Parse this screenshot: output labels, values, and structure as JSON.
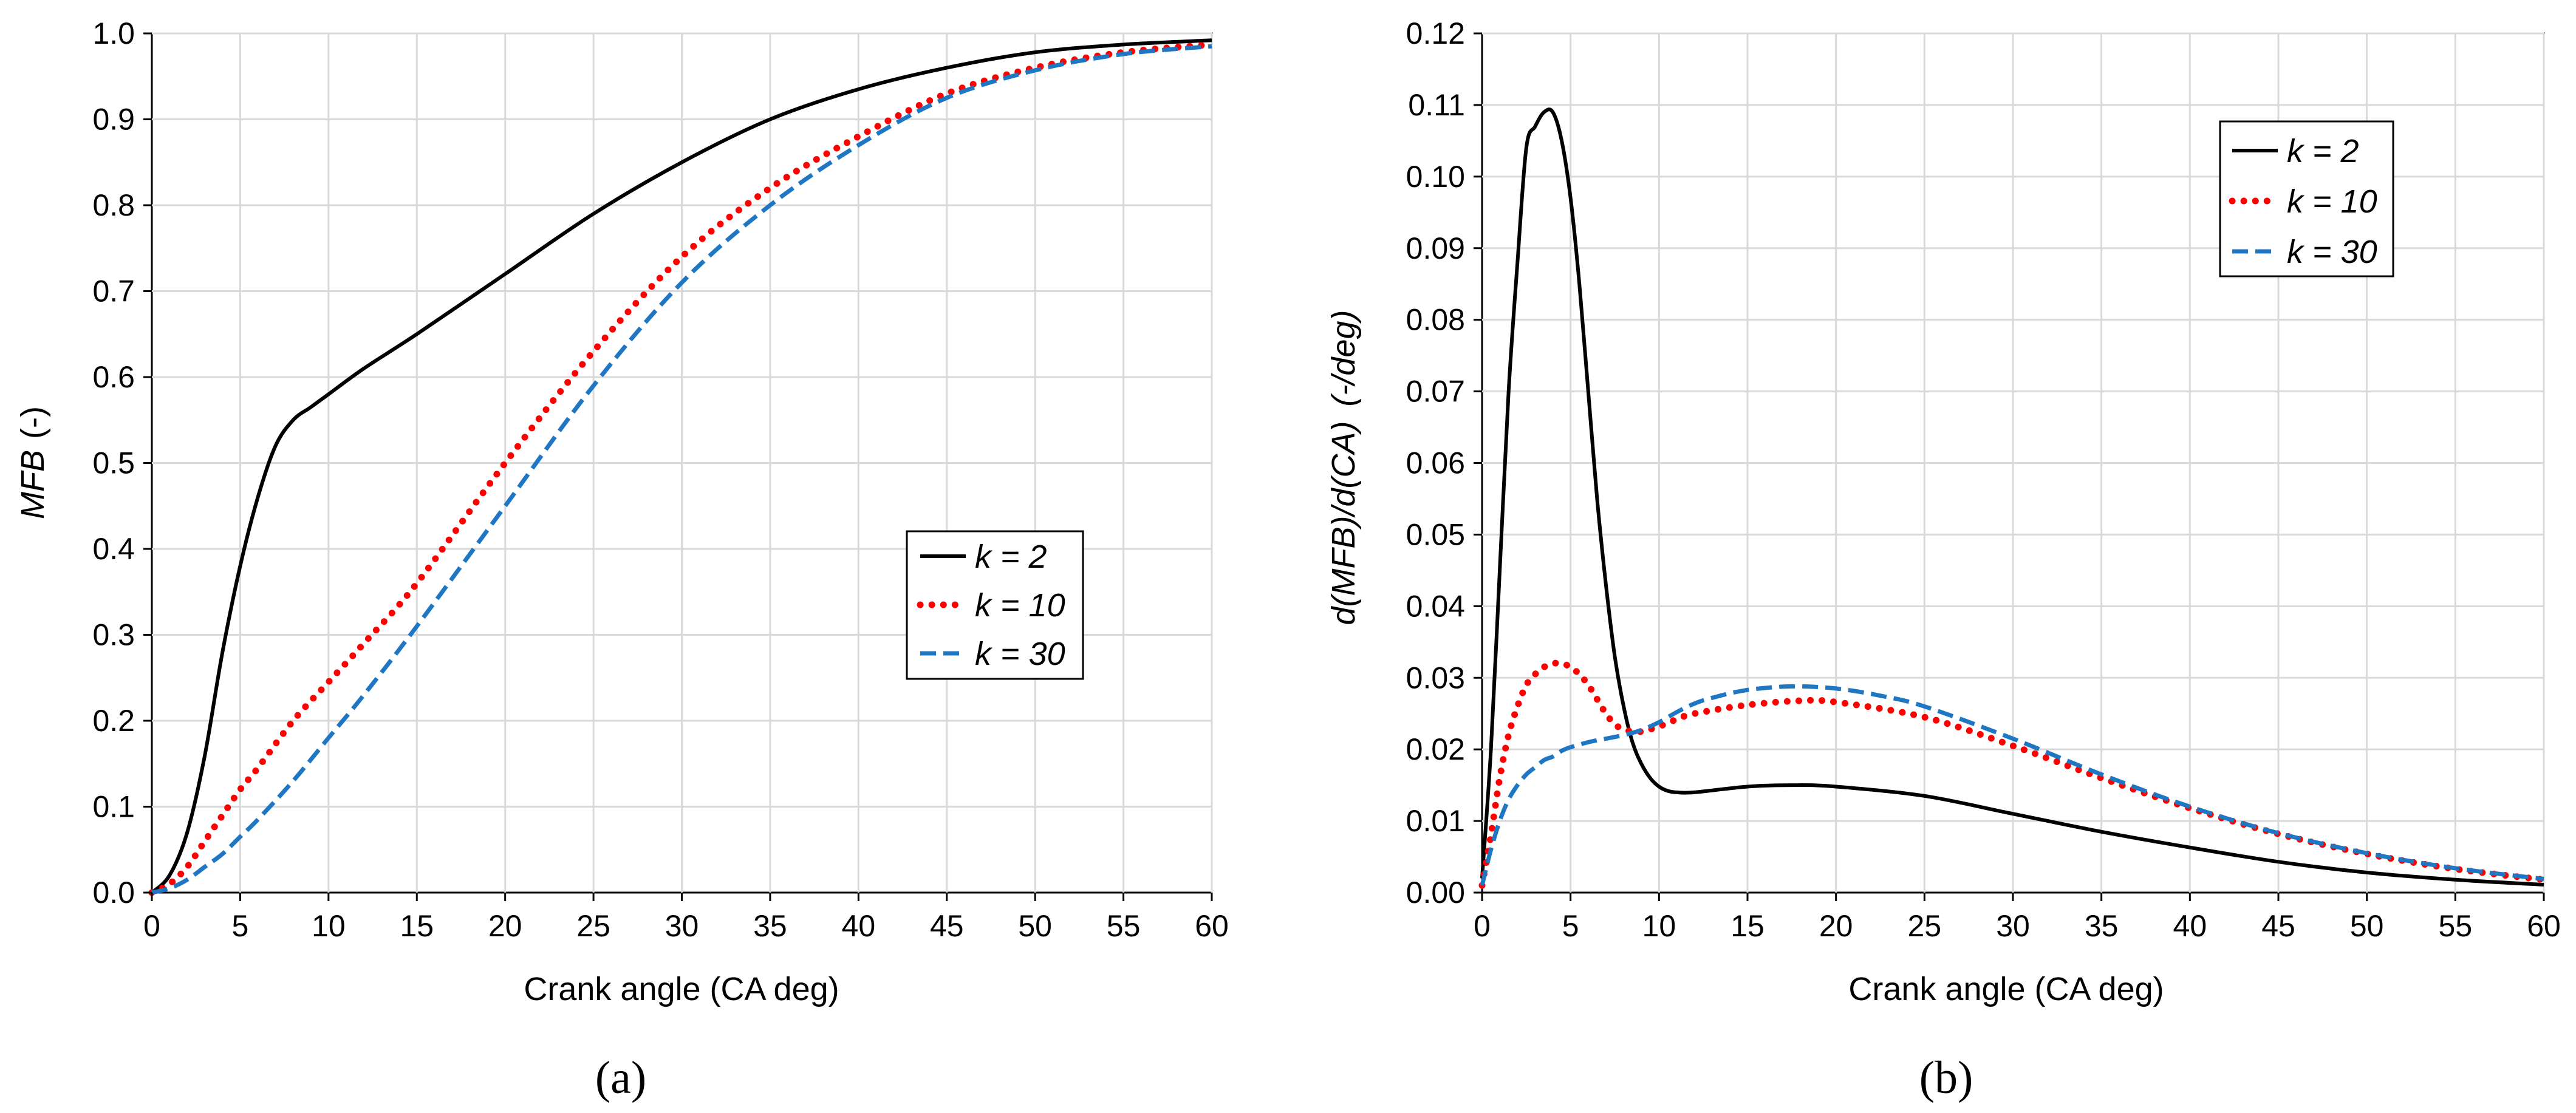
{
  "colors": {
    "k2": "#000000",
    "k10": "#ff0000",
    "k30": "#1f77c4",
    "grid": "#d9d9d9"
  },
  "chart_data": [
    {
      "type": "line",
      "panel_label": "(a)",
      "xlabel": "Crank angle (CA deg)",
      "ylabel_italic": "MFB",
      "ylabel_rest": "(-)",
      "xlim": [
        0,
        60
      ],
      "ylim": [
        0,
        1.0
      ],
      "xticks": [
        "0",
        "5",
        "10",
        "15",
        "20",
        "25",
        "30",
        "35",
        "40",
        "45",
        "50",
        "55",
        "60"
      ],
      "yticks": [
        "0.0",
        "0.1",
        "0.2",
        "0.3",
        "0.4",
        "0.5",
        "0.6",
        "0.7",
        "0.8",
        "0.9",
        "1.0"
      ],
      "legend_position": "center-right",
      "series": [
        {
          "name": "k = 2",
          "style": "solid",
          "x": [
            0,
            1,
            2,
            3,
            4,
            5,
            6,
            7,
            8,
            9,
            10,
            12,
            15,
            20,
            25,
            30,
            35,
            40,
            45,
            50,
            55,
            60
          ],
          "y": [
            0,
            0.02,
            0.07,
            0.16,
            0.28,
            0.38,
            0.46,
            0.52,
            0.55,
            0.565,
            0.58,
            0.61,
            0.65,
            0.72,
            0.79,
            0.85,
            0.9,
            0.935,
            0.96,
            0.978,
            0.987,
            0.992
          ]
        },
        {
          "name": "k = 10",
          "style": "dotted",
          "x": [
            0,
            1,
            2,
            3,
            4,
            5,
            6,
            8,
            10,
            12,
            15,
            20,
            25,
            30,
            35,
            40,
            45,
            50,
            55,
            60
          ],
          "y": [
            0,
            0.01,
            0.03,
            0.06,
            0.09,
            0.12,
            0.145,
            0.2,
            0.245,
            0.29,
            0.36,
            0.5,
            0.63,
            0.74,
            0.82,
            0.88,
            0.93,
            0.96,
            0.978,
            0.987
          ]
        },
        {
          "name": "k = 30",
          "style": "dashed",
          "x": [
            0,
            1,
            2,
            3,
            4,
            5,
            6,
            8,
            10,
            12,
            15,
            20,
            25,
            30,
            35,
            40,
            45,
            50,
            55,
            60
          ],
          "y": [
            0,
            0.005,
            0.015,
            0.03,
            0.045,
            0.065,
            0.085,
            0.13,
            0.18,
            0.23,
            0.31,
            0.45,
            0.59,
            0.71,
            0.8,
            0.87,
            0.925,
            0.957,
            0.976,
            0.985
          ]
        }
      ]
    },
    {
      "type": "line",
      "panel_label": "(b)",
      "xlabel": "Crank angle (CA deg)",
      "ylabel_italic": "d(MFB)/d(CA)",
      "ylabel_rest": "(-/deg)",
      "xlim": [
        0,
        60
      ],
      "ylim": [
        0,
        0.12
      ],
      "xticks": [
        "0",
        "5",
        "10",
        "15",
        "20",
        "25",
        "30",
        "35",
        "40",
        "45",
        "50",
        "55",
        "60"
      ],
      "yticks": [
        "0.00",
        "0.01",
        "0.02",
        "0.03",
        "0.04",
        "0.05",
        "0.06",
        "0.07",
        "0.08",
        "0.09",
        "0.10",
        "0.11",
        "0.12"
      ],
      "legend_position": "top-center",
      "series": [
        {
          "name": "k = 2",
          "style": "solid",
          "x": [
            0,
            0.5,
            1,
            1.5,
            2,
            2.5,
            3,
            3.5,
            4,
            4.5,
            5,
            5.5,
            6,
            6.5,
            7,
            7.5,
            8,
            8.5,
            9,
            9.5,
            10,
            10.5,
            11,
            12,
            15,
            17.5,
            20,
            25,
            30,
            35,
            40,
            45,
            50,
            55,
            60
          ],
          "y": [
            0.002,
            0.02,
            0.045,
            0.07,
            0.088,
            0.104,
            0.107,
            0.109,
            0.109,
            0.105,
            0.097,
            0.085,
            0.07,
            0.055,
            0.043,
            0.033,
            0.026,
            0.021,
            0.018,
            0.016,
            0.0148,
            0.0142,
            0.014,
            0.014,
            0.0148,
            0.015,
            0.0148,
            0.0135,
            0.011,
            0.0085,
            0.0063,
            0.0043,
            0.0028,
            0.0018,
            0.0011
          ]
        },
        {
          "name": "k = 10",
          "style": "dotted",
          "x": [
            0,
            0.5,
            1,
            1.5,
            2,
            2.5,
            3,
            3.5,
            4,
            4.5,
            5,
            5.5,
            6,
            6.5,
            7,
            7.5,
            8,
            8.5,
            9,
            10,
            11,
            12,
            15,
            18,
            20,
            25,
            30,
            35,
            40,
            45,
            50,
            55,
            60
          ],
          "y": [
            0.001,
            0.008,
            0.016,
            0.022,
            0.026,
            0.029,
            0.0305,
            0.0315,
            0.032,
            0.032,
            0.0315,
            0.0305,
            0.029,
            0.027,
            0.025,
            0.0235,
            0.0228,
            0.0225,
            0.0225,
            0.0232,
            0.0242,
            0.025,
            0.0262,
            0.0268,
            0.0266,
            0.0245,
            0.0205,
            0.016,
            0.0118,
            0.0082,
            0.0054,
            0.0033,
            0.0018
          ]
        },
        {
          "name": "k = 30",
          "style": "dashed",
          "x": [
            0,
            0.5,
            1,
            1.5,
            2,
            2.5,
            3,
            3.5,
            4,
            4.5,
            5,
            6,
            7,
            8,
            9,
            10,
            11,
            12,
            13,
            15,
            17.5,
            20,
            22.5,
            25,
            30,
            35,
            40,
            45,
            50,
            55,
            60
          ],
          "y": [
            0.001,
            0.006,
            0.01,
            0.013,
            0.015,
            0.0165,
            0.0175,
            0.0185,
            0.019,
            0.0198,
            0.0203,
            0.021,
            0.0215,
            0.022,
            0.0227,
            0.0238,
            0.0252,
            0.0264,
            0.0272,
            0.0283,
            0.0288,
            0.0285,
            0.0275,
            0.026,
            0.0215,
            0.0165,
            0.012,
            0.0083,
            0.0055,
            0.0034,
            0.0019
          ]
        }
      ]
    }
  ]
}
